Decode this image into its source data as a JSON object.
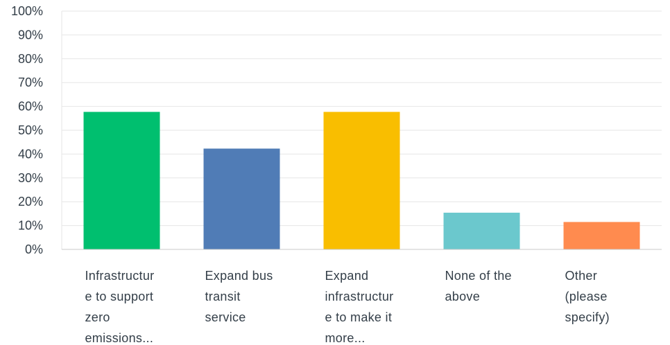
{
  "chart_data": {
    "type": "bar",
    "categories": [
      "Infrastructur\ne to support\nzero\nemissions...",
      "Expand bus\ntransit\nservice",
      "Expand\ninfrastructur\ne to make it\nmore...",
      "None of the\nabove",
      "Other\n(please\nspecify)"
    ],
    "values": [
      57.7,
      42.3,
      57.7,
      15.4,
      11.5
    ],
    "colors": [
      "#00bf6f",
      "#507cb6",
      "#f9be00",
      "#6bc8cd",
      "#ff8b4f"
    ],
    "ylim": [
      0,
      100
    ],
    "yticks": [
      "0%",
      "10%",
      "20%",
      "30%",
      "40%",
      "50%",
      "60%",
      "70%",
      "80%",
      "90%",
      "100%"
    ],
    "grid": true,
    "title": "",
    "xlabel": "",
    "ylabel": ""
  }
}
